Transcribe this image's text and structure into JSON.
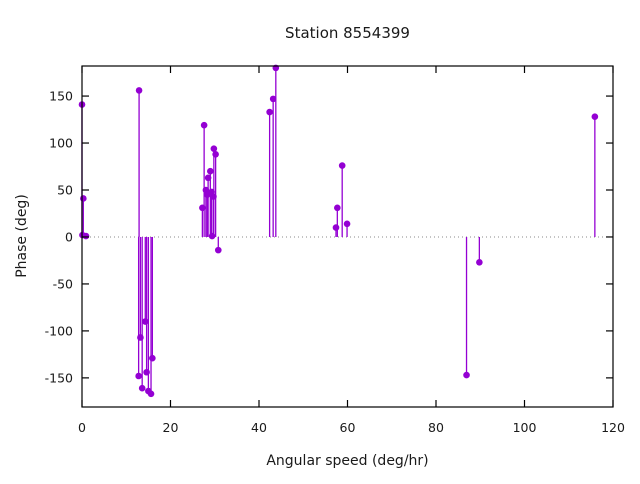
{
  "title": "Station 8554399",
  "axes": {
    "xlabel": "Angular speed (deg/hr)",
    "ylabel": "Phase (deg)"
  },
  "colors": {
    "series": "#9400d3",
    "border": "#000000",
    "zero_line": "#8a8a8a",
    "text": "#1a1a1a",
    "background": "#ffffff"
  },
  "chart_data": {
    "type": "scatter",
    "style": "impulses-with-points",
    "title": "Station 8554399",
    "xlabel": "Angular speed (deg/hr)",
    "ylabel": "Phase (deg)",
    "xlim": [
      0,
      120
    ],
    "ylim": [
      -181,
      182
    ],
    "xticks": [
      0,
      20,
      40,
      60,
      80,
      100,
      120
    ],
    "yticks": [
      -150,
      -100,
      -50,
      0,
      50,
      100,
      150
    ],
    "grid": false,
    "legend": "none",
    "zero_line": true,
    "series": [
      {
        "name": "phase",
        "points": [
          [
            0.0,
            141
          ],
          [
            0.3,
            41
          ],
          [
            0.1,
            2
          ],
          [
            0.9,
            1
          ],
          [
            12.9,
            156
          ],
          [
            13.2,
            -107
          ],
          [
            14.3,
            -90
          ],
          [
            15.9,
            -129
          ],
          [
            14.6,
            -144
          ],
          [
            12.8,
            -148
          ],
          [
            13.6,
            -161
          ],
          [
            15.0,
            -164
          ],
          [
            15.6,
            -167
          ],
          [
            27.6,
            119
          ],
          [
            29.8,
            94
          ],
          [
            30.2,
            88
          ],
          [
            29.0,
            70
          ],
          [
            28.5,
            63
          ],
          [
            28.0,
            50
          ],
          [
            29.3,
            48
          ],
          [
            28.3,
            45
          ],
          [
            29.7,
            43
          ],
          [
            27.2,
            31
          ],
          [
            29.4,
            1
          ],
          [
            30.8,
            -14
          ],
          [
            42.4,
            133
          ],
          [
            43.2,
            147
          ],
          [
            43.8,
            180
          ],
          [
            57.4,
            10
          ],
          [
            57.7,
            31
          ],
          [
            58.8,
            76
          ],
          [
            59.9,
            14
          ],
          [
            86.9,
            -147
          ],
          [
            89.8,
            -27
          ],
          [
            115.9,
            128
          ]
        ]
      }
    ]
  }
}
